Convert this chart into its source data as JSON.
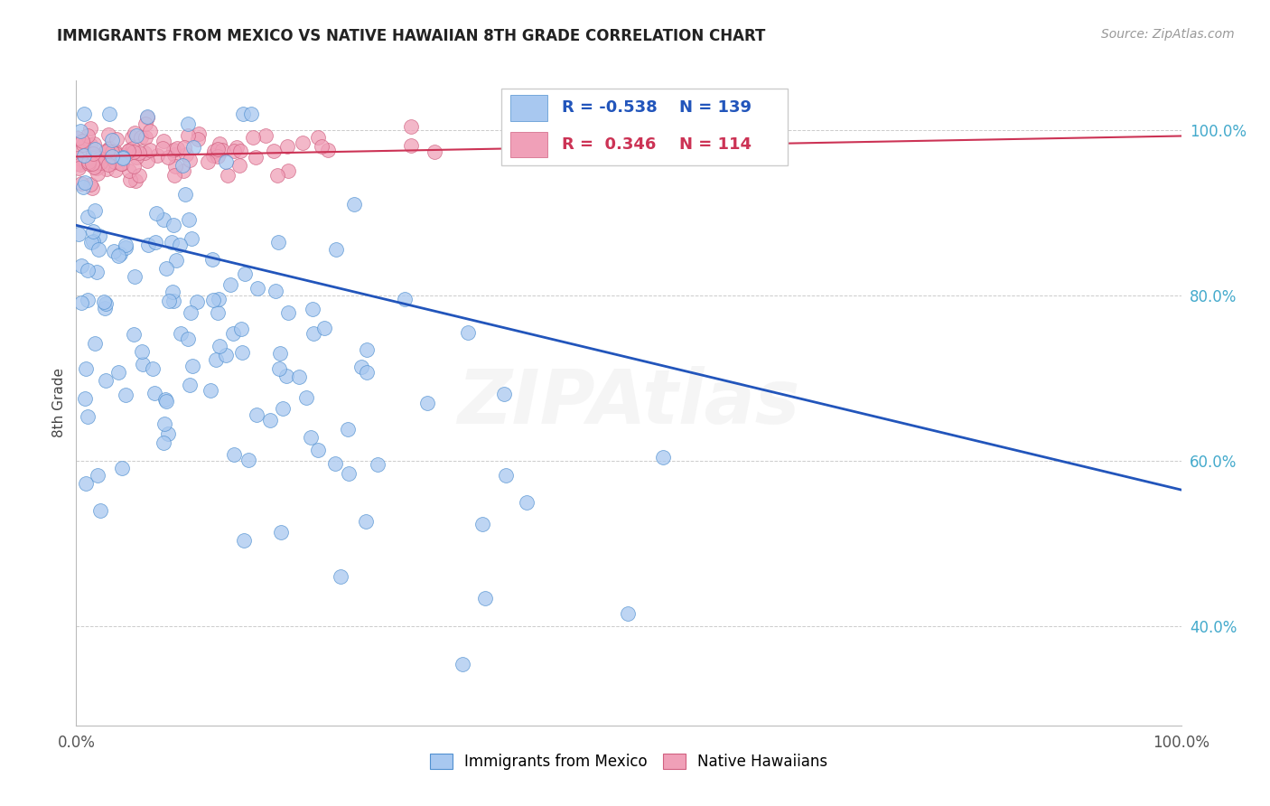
{
  "title": "IMMIGRANTS FROM MEXICO VS NATIVE HAWAIIAN 8TH GRADE CORRELATION CHART",
  "source": "Source: ZipAtlas.com",
  "ylabel": "8th Grade",
  "xlim": [
    0.0,
    1.0
  ],
  "ylim": [
    0.28,
    1.06
  ],
  "yticks": [
    0.4,
    0.6,
    0.8,
    1.0
  ],
  "ytick_labels": [
    "40.0%",
    "60.0%",
    "80.0%",
    "100.0%"
  ],
  "blue_R": -0.538,
  "blue_N": 139,
  "pink_R": 0.346,
  "pink_N": 114,
  "blue_color": "#a8c8f0",
  "pink_color": "#f0a0b8",
  "blue_edge_color": "#5090d0",
  "pink_edge_color": "#d06080",
  "blue_line_color": "#2255bb",
  "pink_line_color": "#cc3355",
  "legend_blue_label": "Immigrants from Mexico",
  "legend_pink_label": "Native Hawaiians",
  "blue_line_x": [
    0.0,
    1.0
  ],
  "blue_line_y": [
    0.885,
    0.565
  ],
  "pink_line_x": [
    0.0,
    1.0
  ],
  "pink_line_y": [
    0.968,
    0.993
  ],
  "watermark": "ZIPAtlas",
  "background_color": "#ffffff",
  "grid_color": "#cccccc",
  "title_color": "#222222",
  "source_color": "#999999",
  "ytick_color": "#44aacc"
}
